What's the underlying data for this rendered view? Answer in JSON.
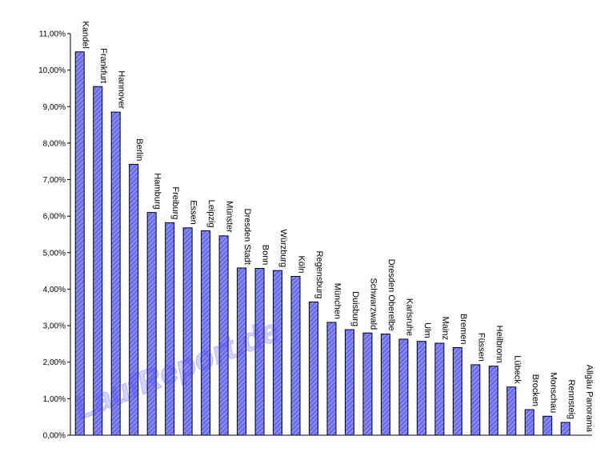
{
  "chart_data": {
    "type": "bar",
    "categories": [
      "Kandel",
      "Frankfurt",
      "Hannover",
      "Berlin",
      "Hamburg",
      "Freiburg",
      "Essen",
      "Leipzig",
      "Münster",
      "Dresden Stadt",
      "Bonn",
      "Würzburg",
      "Köln",
      "Regensburg",
      "München",
      "Duisburg",
      "Schwarzwald",
      "Dresden Oberelbe",
      "Karlsruhe",
      "Ulm",
      "Mainz",
      "Bremen",
      "Füssen",
      "Heilbronn",
      "Lübeck",
      "Brocken",
      "Monschau",
      "Rennsteig",
      "Allgäu Panorama"
    ],
    "values": [
      10.5,
      9.55,
      8.85,
      7.42,
      6.1,
      5.82,
      5.68,
      5.6,
      5.46,
      4.58,
      4.57,
      4.51,
      4.35,
      3.65,
      3.09,
      2.89,
      2.8,
      2.77,
      2.63,
      2.57,
      2.52,
      2.4,
      1.93,
      1.89,
      1.32,
      0.7,
      0.52,
      0.35,
      0.0
    ],
    "yticks": [
      "0,00%",
      "1,00%",
      "2,00%",
      "3,00%",
      "4,00%",
      "5,00%",
      "6,00%",
      "7,00%",
      "8,00%",
      "9,00%",
      "10,00%",
      "11,00%"
    ],
    "ylim": [
      0,
      11
    ],
    "bar_color": "#6a6cf6",
    "watermark": "LaufReport.de"
  }
}
